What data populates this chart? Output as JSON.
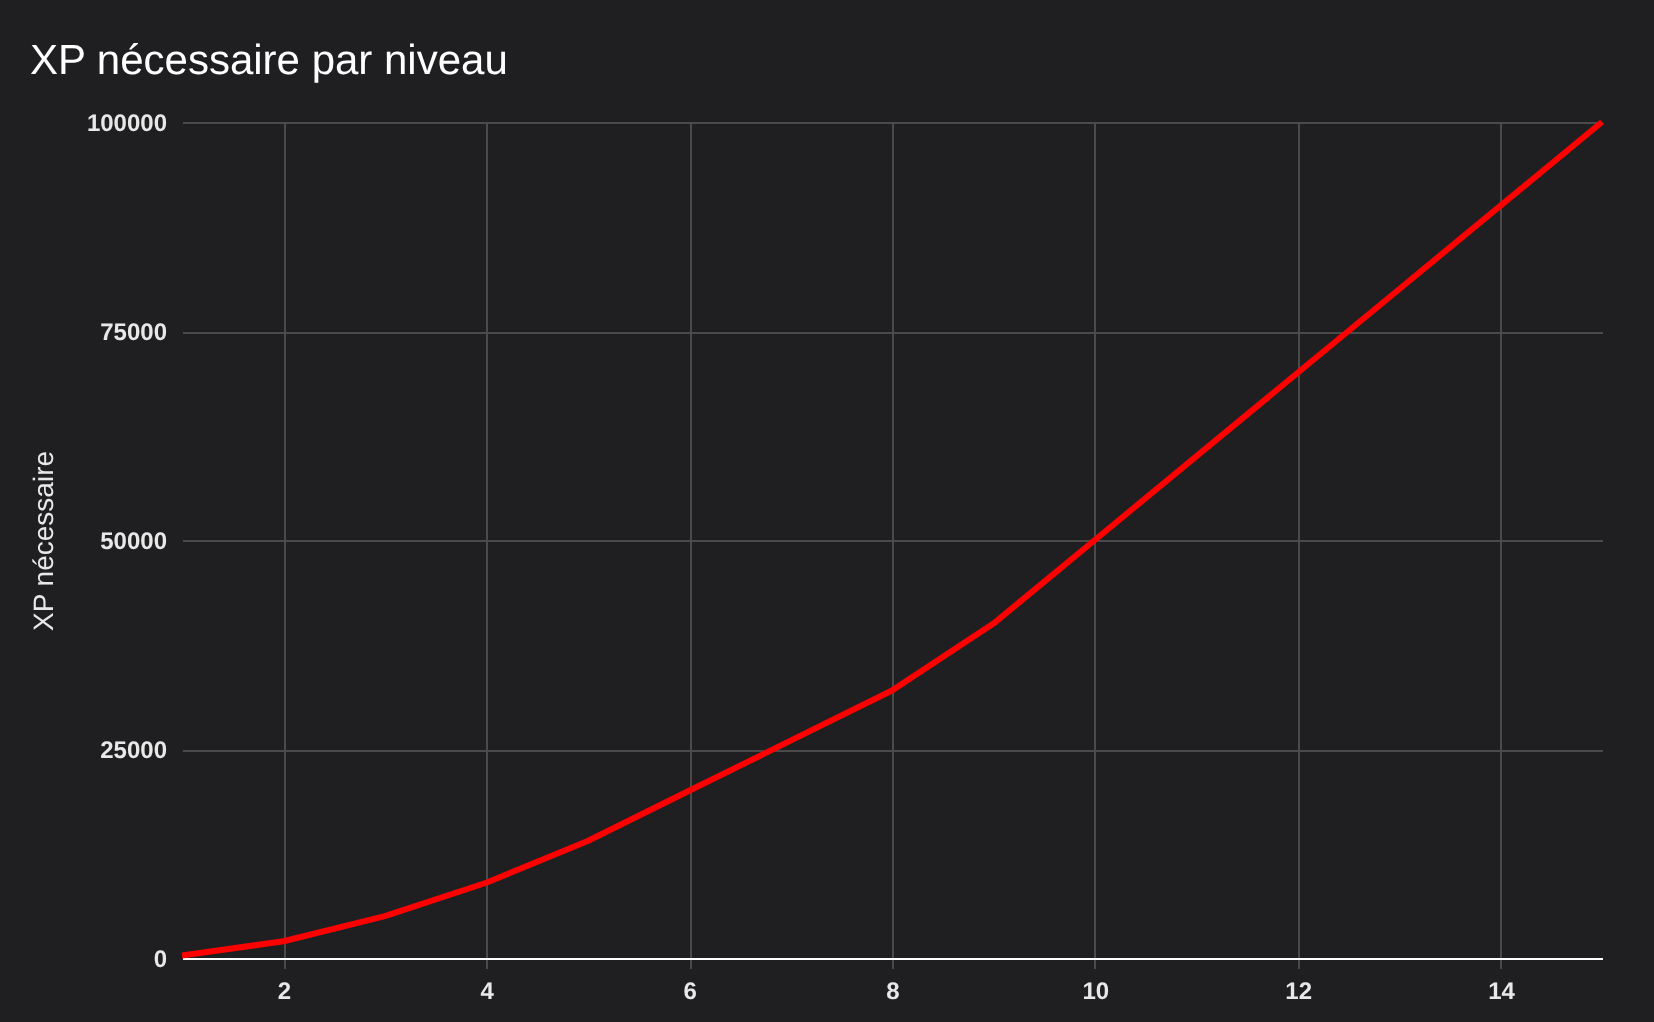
{
  "chart_data": {
    "type": "line",
    "title": "XP nécessaire par niveau",
    "ylabel": "XP nécessaire",
    "x": [
      1,
      2,
      3,
      4,
      5,
      6,
      7,
      8,
      9,
      10,
      11,
      12,
      13,
      14,
      15
    ],
    "series": [
      {
        "color": "#ff0000",
        "values": [
          300,
          2000,
          5000,
          9000,
          14000,
          20000,
          26000,
          32000,
          40000,
          50000,
          60000,
          70000,
          80000,
          90000,
          100000
        ]
      }
    ],
    "xlim": [
      1,
      15
    ],
    "xticks": [
      2,
      4,
      6,
      8,
      10,
      12,
      14
    ],
    "ylim": [
      0,
      100000
    ],
    "yticks": [
      0,
      25000,
      50000,
      75000,
      100000
    ],
    "grid": true,
    "marker": "none",
    "line_style": "solid"
  }
}
